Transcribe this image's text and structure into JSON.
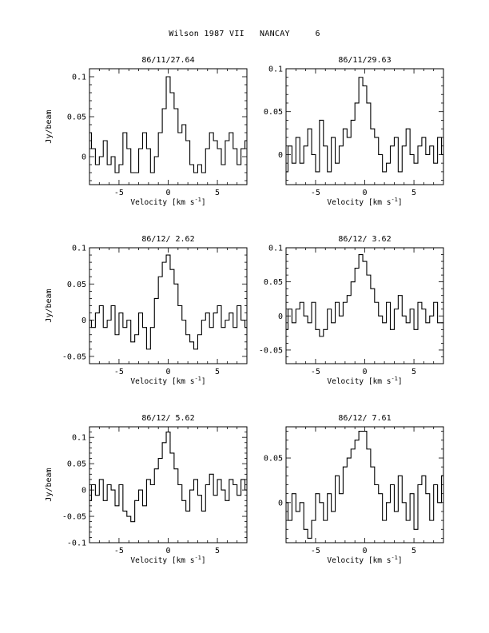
{
  "page": {
    "title": "Wilson 1987 VII   NANCAY     6"
  },
  "chart_data": [
    {
      "type": "line",
      "title": "86/11/27.64",
      "xlabel": "Velocity [km s⁻¹]",
      "ylabel": "Jy/beam",
      "xlim": [
        -8,
        8
      ],
      "ylim": [
        -0.035,
        0.11
      ],
      "xticks": [
        -5,
        0,
        5
      ],
      "yticks": [
        0,
        0.05,
        0.1
      ],
      "ytick_labels": [
        "0",
        "0.05",
        "0.1"
      ],
      "xtick_labels": [
        "-5",
        "0",
        "5"
      ],
      "series": [
        {
          "x": [
            -8.0,
            -7.6,
            -7.2,
            -6.8,
            -6.4,
            -6.0,
            -5.6,
            -5.2,
            -4.8,
            -4.4,
            -4.0,
            -3.6,
            -3.2,
            -2.8,
            -2.4,
            -2.0,
            -1.6,
            -1.2,
            -0.8,
            -0.4,
            0.0,
            0.4,
            0.8,
            1.2,
            1.6,
            2.0,
            2.4,
            2.8,
            3.2,
            3.6,
            4.0,
            4.4,
            4.8,
            5.2,
            5.6,
            6.0,
            6.4,
            6.8,
            7.2,
            7.6,
            8.0
          ],
          "y": [
            0.03,
            0.01,
            -0.01,
            0.0,
            0.02,
            -0.01,
            0.0,
            -0.02,
            -0.01,
            0.03,
            0.01,
            -0.02,
            -0.02,
            0.01,
            0.03,
            0.01,
            -0.02,
            0.0,
            0.03,
            0.06,
            0.1,
            0.08,
            0.06,
            0.03,
            0.04,
            0.02,
            -0.01,
            -0.02,
            -0.01,
            -0.02,
            0.01,
            0.03,
            0.02,
            0.01,
            -0.01,
            0.02,
            0.03,
            0.01,
            -0.01,
            0.01,
            0.02
          ]
        }
      ]
    },
    {
      "type": "line",
      "title": "86/11/29.63",
      "xlabel": "Velocity [km s⁻¹]",
      "ylabel": "",
      "xlim": [
        -8,
        8
      ],
      "ylim": [
        -0.035,
        0.1
      ],
      "xticks": [
        -5,
        0,
        5
      ],
      "yticks": [
        0,
        0.05,
        0.1
      ],
      "ytick_labels": [
        "0",
        "0.05",
        "0.1"
      ],
      "xtick_labels": [
        "-5",
        "0",
        "5"
      ],
      "series": [
        {
          "x": [
            -8.0,
            -7.6,
            -7.2,
            -6.8,
            -6.4,
            -6.0,
            -5.6,
            -5.2,
            -4.8,
            -4.4,
            -4.0,
            -3.6,
            -3.2,
            -2.8,
            -2.4,
            -2.0,
            -1.6,
            -1.2,
            -0.8,
            -0.4,
            0.0,
            0.4,
            0.8,
            1.2,
            1.6,
            2.0,
            2.4,
            2.8,
            3.2,
            3.6,
            4.0,
            4.4,
            4.8,
            5.2,
            5.6,
            6.0,
            6.4,
            6.8,
            7.2,
            7.6,
            8.0
          ],
          "y": [
            -0.02,
            0.01,
            -0.01,
            0.02,
            -0.01,
            0.01,
            0.03,
            0.0,
            -0.02,
            0.04,
            0.01,
            -0.02,
            0.02,
            -0.01,
            0.01,
            0.03,
            0.02,
            0.04,
            0.06,
            0.09,
            0.08,
            0.06,
            0.03,
            0.02,
            0.0,
            -0.02,
            -0.01,
            0.01,
            0.02,
            -0.02,
            0.01,
            0.03,
            0.0,
            -0.01,
            0.01,
            0.02,
            0.0,
            0.01,
            -0.01,
            0.02,
            0.0
          ]
        }
      ]
    },
    {
      "type": "line",
      "title": "86/12/ 2.62",
      "xlabel": "Velocity [km s⁻¹]",
      "ylabel": "Jy/beam",
      "xlim": [
        -8,
        8
      ],
      "ylim": [
        -0.06,
        0.1
      ],
      "xticks": [
        -5,
        0,
        5
      ],
      "yticks": [
        -0.05,
        0,
        0.05,
        0.1
      ],
      "ytick_labels": [
        "-0.05",
        "0",
        "0.05",
        "0.1"
      ],
      "xtick_labels": [
        "-5",
        "0",
        "5"
      ],
      "series": [
        {
          "x": [
            -8.0,
            -7.6,
            -7.2,
            -6.8,
            -6.4,
            -6.0,
            -5.6,
            -5.2,
            -4.8,
            -4.4,
            -4.0,
            -3.6,
            -3.2,
            -2.8,
            -2.4,
            -2.0,
            -1.6,
            -1.2,
            -0.8,
            -0.4,
            0.0,
            0.4,
            0.8,
            1.2,
            1.6,
            2.0,
            2.4,
            2.8,
            3.2,
            3.6,
            4.0,
            4.4,
            4.8,
            5.2,
            5.6,
            6.0,
            6.4,
            6.8,
            7.2,
            7.6,
            8.0
          ],
          "y": [
            0.0,
            -0.01,
            0.01,
            0.02,
            -0.01,
            0.0,
            0.02,
            -0.02,
            0.01,
            -0.01,
            0.0,
            -0.03,
            -0.02,
            0.01,
            -0.01,
            -0.04,
            -0.01,
            0.03,
            0.06,
            0.08,
            0.09,
            0.07,
            0.05,
            0.02,
            0.0,
            -0.02,
            -0.03,
            -0.04,
            -0.02,
            0.0,
            0.01,
            -0.01,
            0.01,
            0.02,
            -0.01,
            0.0,
            0.01,
            -0.01,
            0.02,
            0.0,
            -0.01
          ]
        }
      ]
    },
    {
      "type": "line",
      "title": "86/12/ 3.62",
      "xlabel": "Velocity [km s⁻¹]",
      "ylabel": "",
      "xlim": [
        -8,
        8
      ],
      "ylim": [
        -0.07,
        0.1
      ],
      "xticks": [
        -5,
        0,
        5
      ],
      "yticks": [
        -0.05,
        0,
        0.05,
        0.1
      ],
      "ytick_labels": [
        "-0.05",
        "0",
        "0.05",
        "0.1"
      ],
      "xtick_labels": [
        "-5",
        "0",
        "5"
      ],
      "series": [
        {
          "x": [
            -8.0,
            -7.6,
            -7.2,
            -6.8,
            -6.4,
            -6.0,
            -5.6,
            -5.2,
            -4.8,
            -4.4,
            -4.0,
            -3.6,
            -3.2,
            -2.8,
            -2.4,
            -2.0,
            -1.6,
            -1.2,
            -0.8,
            -0.4,
            0.0,
            0.4,
            0.8,
            1.2,
            1.6,
            2.0,
            2.4,
            2.8,
            3.2,
            3.6,
            4.0,
            4.4,
            4.8,
            5.2,
            5.6,
            6.0,
            6.4,
            6.8,
            7.2,
            7.6,
            8.0
          ],
          "y": [
            -0.02,
            0.01,
            -0.01,
            0.01,
            0.02,
            0.0,
            -0.01,
            0.02,
            -0.02,
            -0.03,
            -0.02,
            0.01,
            -0.01,
            0.02,
            0.0,
            0.02,
            0.03,
            0.05,
            0.07,
            0.09,
            0.08,
            0.06,
            0.04,
            0.02,
            0.0,
            -0.01,
            0.02,
            -0.02,
            0.01,
            0.03,
            0.0,
            -0.01,
            0.01,
            -0.02,
            0.02,
            0.01,
            -0.01,
            0.0,
            0.02,
            -0.01,
            -0.01
          ]
        }
      ]
    },
    {
      "type": "line",
      "title": "86/12/ 5.62",
      "xlabel": "Velocity [km s⁻¹]",
      "ylabel": "Jy/beam",
      "xlim": [
        -8,
        8
      ],
      "ylim": [
        -0.1,
        0.12
      ],
      "xticks": [
        -5,
        0,
        5
      ],
      "yticks": [
        -0.1,
        -0.05,
        0,
        0.05,
        0.1
      ],
      "ytick_labels": [
        "-0.1",
        "-0.05",
        "0",
        "0.05",
        "0.1"
      ],
      "xtick_labels": [
        "-5",
        "0",
        "5"
      ],
      "series": [
        {
          "x": [
            -8.0,
            -7.6,
            -7.2,
            -6.8,
            -6.4,
            -6.0,
            -5.6,
            -5.2,
            -4.8,
            -4.4,
            -4.0,
            -3.6,
            -3.2,
            -2.8,
            -2.4,
            -2.0,
            -1.6,
            -1.2,
            -0.8,
            -0.4,
            0.0,
            0.4,
            0.8,
            1.2,
            1.6,
            2.0,
            2.4,
            2.8,
            3.2,
            3.6,
            4.0,
            4.4,
            4.8,
            5.2,
            5.6,
            6.0,
            6.4,
            6.8,
            7.2,
            7.6,
            8.0
          ],
          "y": [
            -0.02,
            0.01,
            -0.01,
            0.02,
            -0.02,
            0.01,
            0.0,
            -0.03,
            0.01,
            -0.04,
            -0.05,
            -0.06,
            -0.02,
            0.0,
            -0.03,
            0.02,
            0.01,
            0.04,
            0.06,
            0.09,
            0.11,
            0.07,
            0.04,
            0.01,
            -0.02,
            -0.04,
            0.0,
            0.02,
            -0.01,
            -0.04,
            0.01,
            0.03,
            -0.01,
            0.02,
            0.0,
            -0.02,
            0.02,
            0.01,
            -0.01,
            0.02,
            0.0
          ]
        }
      ]
    },
    {
      "type": "line",
      "title": "86/12/ 7.61",
      "xlabel": "Velocity [km s⁻¹]",
      "ylabel": "",
      "xlim": [
        -8,
        8
      ],
      "ylim": [
        -0.045,
        0.085
      ],
      "xticks": [
        -5,
        0,
        5
      ],
      "yticks": [
        0,
        0.05
      ],
      "ytick_labels": [
        "0",
        "0.05"
      ],
      "xtick_labels": [
        "-5",
        "0",
        "5"
      ],
      "series": [
        {
          "x": [
            -8.0,
            -7.6,
            -7.2,
            -6.8,
            -6.4,
            -6.0,
            -5.6,
            -5.2,
            -4.8,
            -4.4,
            -4.0,
            -3.6,
            -3.2,
            -2.8,
            -2.4,
            -2.0,
            -1.6,
            -1.2,
            -0.8,
            -0.4,
            0.0,
            0.4,
            0.8,
            1.2,
            1.6,
            2.0,
            2.4,
            2.8,
            3.2,
            3.6,
            4.0,
            4.4,
            4.8,
            5.2,
            5.6,
            6.0,
            6.4,
            6.8,
            7.2,
            7.6,
            8.0
          ],
          "y": [
            0.0,
            -0.02,
            0.01,
            -0.01,
            0.0,
            -0.03,
            -0.04,
            -0.02,
            0.01,
            0.0,
            -0.02,
            0.01,
            -0.01,
            0.03,
            0.01,
            0.04,
            0.05,
            0.06,
            0.07,
            0.08,
            0.08,
            0.06,
            0.04,
            0.02,
            0.01,
            -0.02,
            0.0,
            0.02,
            -0.01,
            0.03,
            0.0,
            -0.02,
            0.01,
            -0.03,
            0.02,
            0.03,
            0.01,
            -0.02,
            0.02,
            0.0,
            0.03
          ]
        }
      ]
    }
  ]
}
